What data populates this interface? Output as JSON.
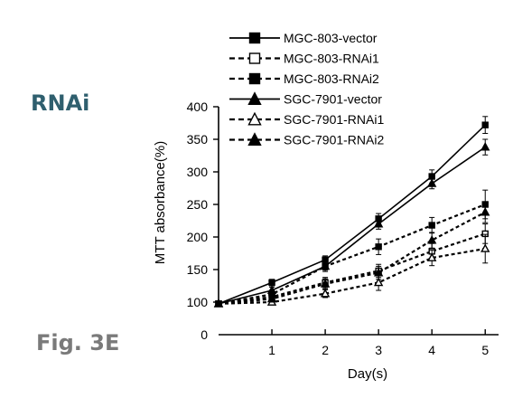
{
  "labels": {
    "panel": "RNAi",
    "figure": "Fig. 3E"
  },
  "colors": {
    "panel_label": "#2f5f6e",
    "figure_label": "#7a7a7a",
    "ink": "#000000"
  },
  "chart_data": {
    "type": "line",
    "title": "",
    "xlabel": "Day(s)",
    "ylabel": "MTT absorbance(%)",
    "x": [
      0,
      1,
      2,
      3,
      4,
      5
    ],
    "x_tick_labels": [
      "1",
      "2",
      "3",
      "4",
      "5"
    ],
    "x_ticks": [
      1,
      2,
      3,
      4,
      5
    ],
    "xlim": [
      0,
      5.25
    ],
    "ylim": [
      0,
      400
    ],
    "y_ticks": [
      0,
      100,
      150,
      200,
      250,
      300,
      350,
      400
    ],
    "y_tick_labels": [
      "0",
      "100",
      "150",
      "200",
      "250",
      "300",
      "350",
      "400"
    ],
    "grid": false,
    "legend_position": "top",
    "series": [
      {
        "name": "MGC-803-vector",
        "line": "solid",
        "marker": "square",
        "fill": "filled",
        "values": [
          95,
          130,
          165,
          228,
          293,
          372
        ],
        "errors": [
          4,
          5,
          6,
          8,
          10,
          13
        ]
      },
      {
        "name": "MGC-803-RNAi1",
        "line": "dashed",
        "marker": "square",
        "fill": "open",
        "values": [
          95,
          108,
          130,
          148,
          178,
          205
        ],
        "errors": [
          4,
          5,
          8,
          10,
          12,
          15
        ]
      },
      {
        "name": "MGC-803-RNAi2",
        "line": "dashed",
        "marker": "square",
        "fill": "filled",
        "values": [
          95,
          112,
          155,
          185,
          218,
          250
        ],
        "errors": [
          4,
          5,
          8,
          12,
          12,
          22
        ]
      },
      {
        "name": "SGC-7901-vector",
        "line": "solid",
        "marker": "triangle",
        "fill": "filled",
        "values": [
          95,
          118,
          155,
          220,
          282,
          338
        ],
        "errors": [
          4,
          5,
          6,
          8,
          8,
          12
        ]
      },
      {
        "name": "SGC-7901-RNAi1",
        "line": "dashed",
        "marker": "triangle",
        "fill": "open",
        "values": [
          95,
          100,
          113,
          130,
          168,
          182
        ],
        "errors": [
          4,
          5,
          6,
          12,
          12,
          22
        ]
      },
      {
        "name": "SGC-7901-RNAi2",
        "line": "dashed",
        "marker": "triangle",
        "fill": "filled",
        "values": [
          95,
          105,
          128,
          145,
          195,
          238
        ],
        "errors": [
          4,
          5,
          8,
          10,
          12,
          16
        ]
      }
    ]
  }
}
